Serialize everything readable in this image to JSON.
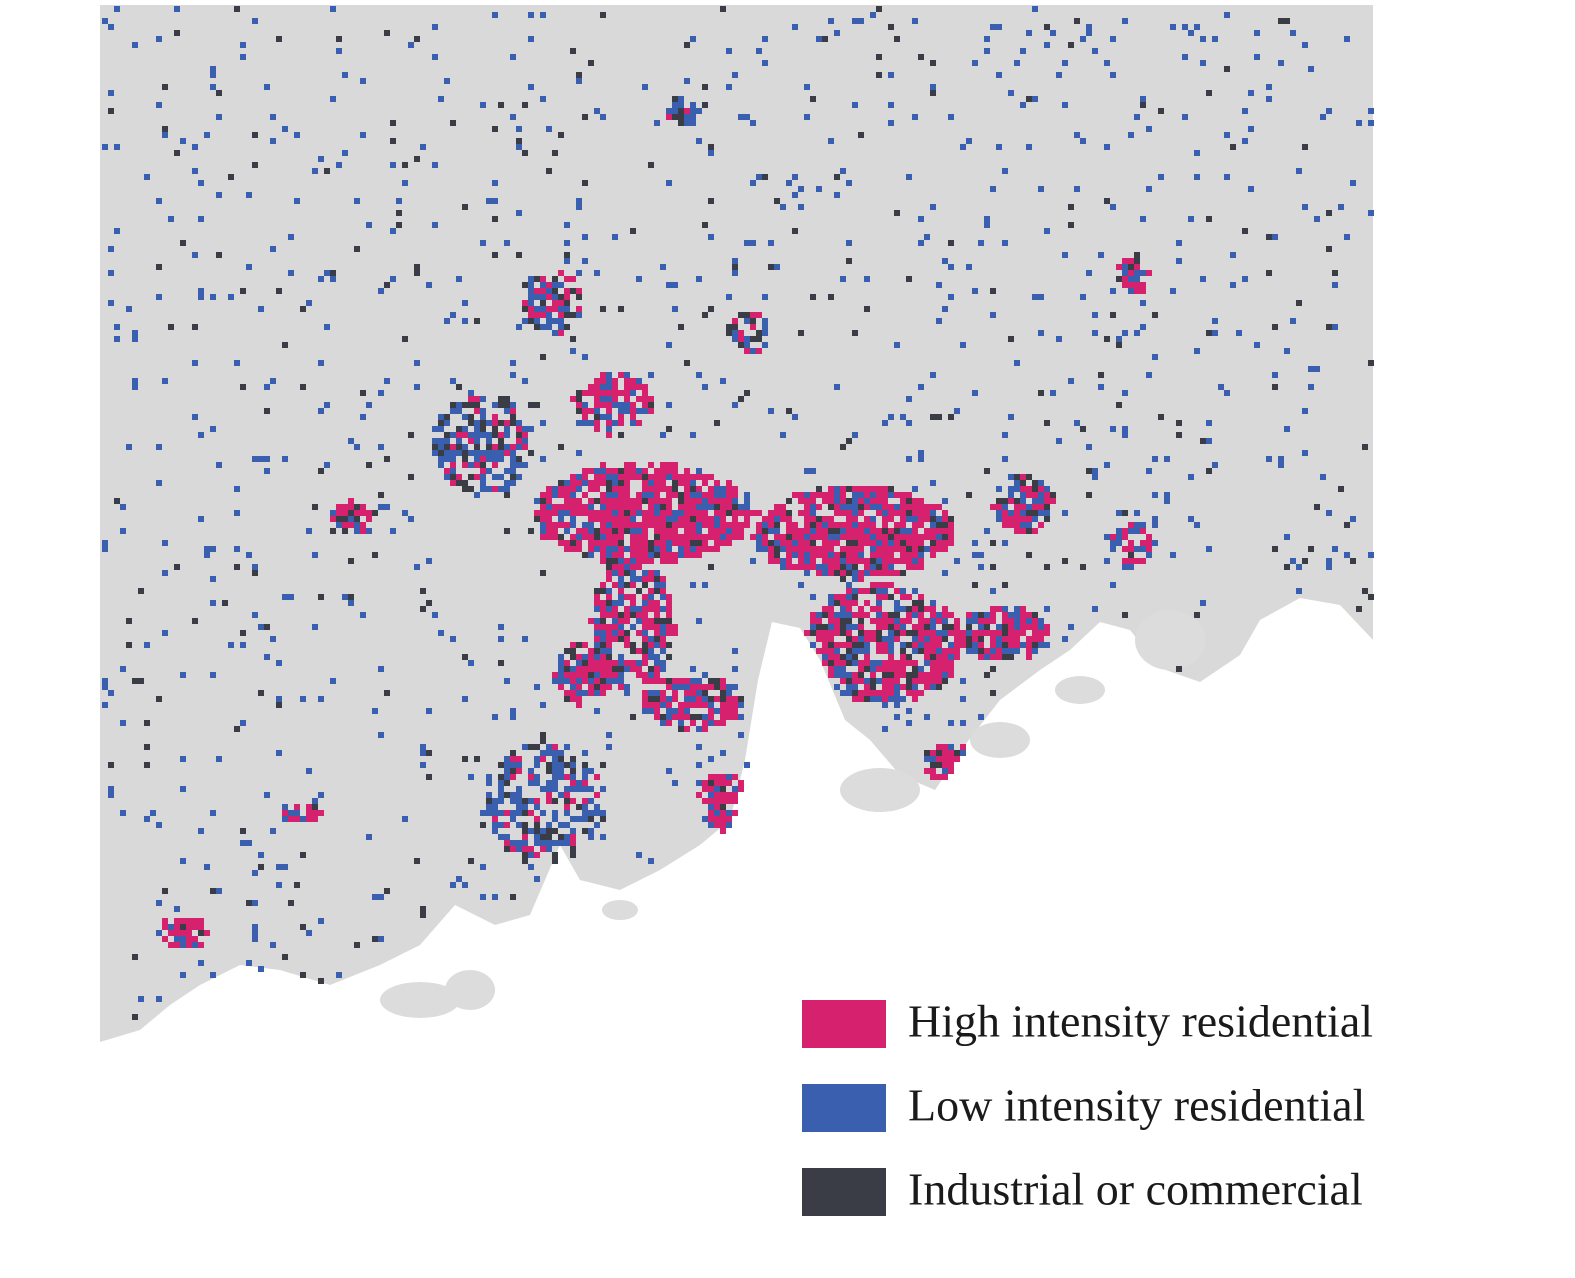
{
  "legend": {
    "items": [
      {
        "label": "High intensity residential",
        "color": "#d6226e"
      },
      {
        "label": "Low intensity residential",
        "color": "#3a5fae"
      },
      {
        "label": "Industrial or commercial",
        "color": "#3a3d45"
      }
    ]
  }
}
